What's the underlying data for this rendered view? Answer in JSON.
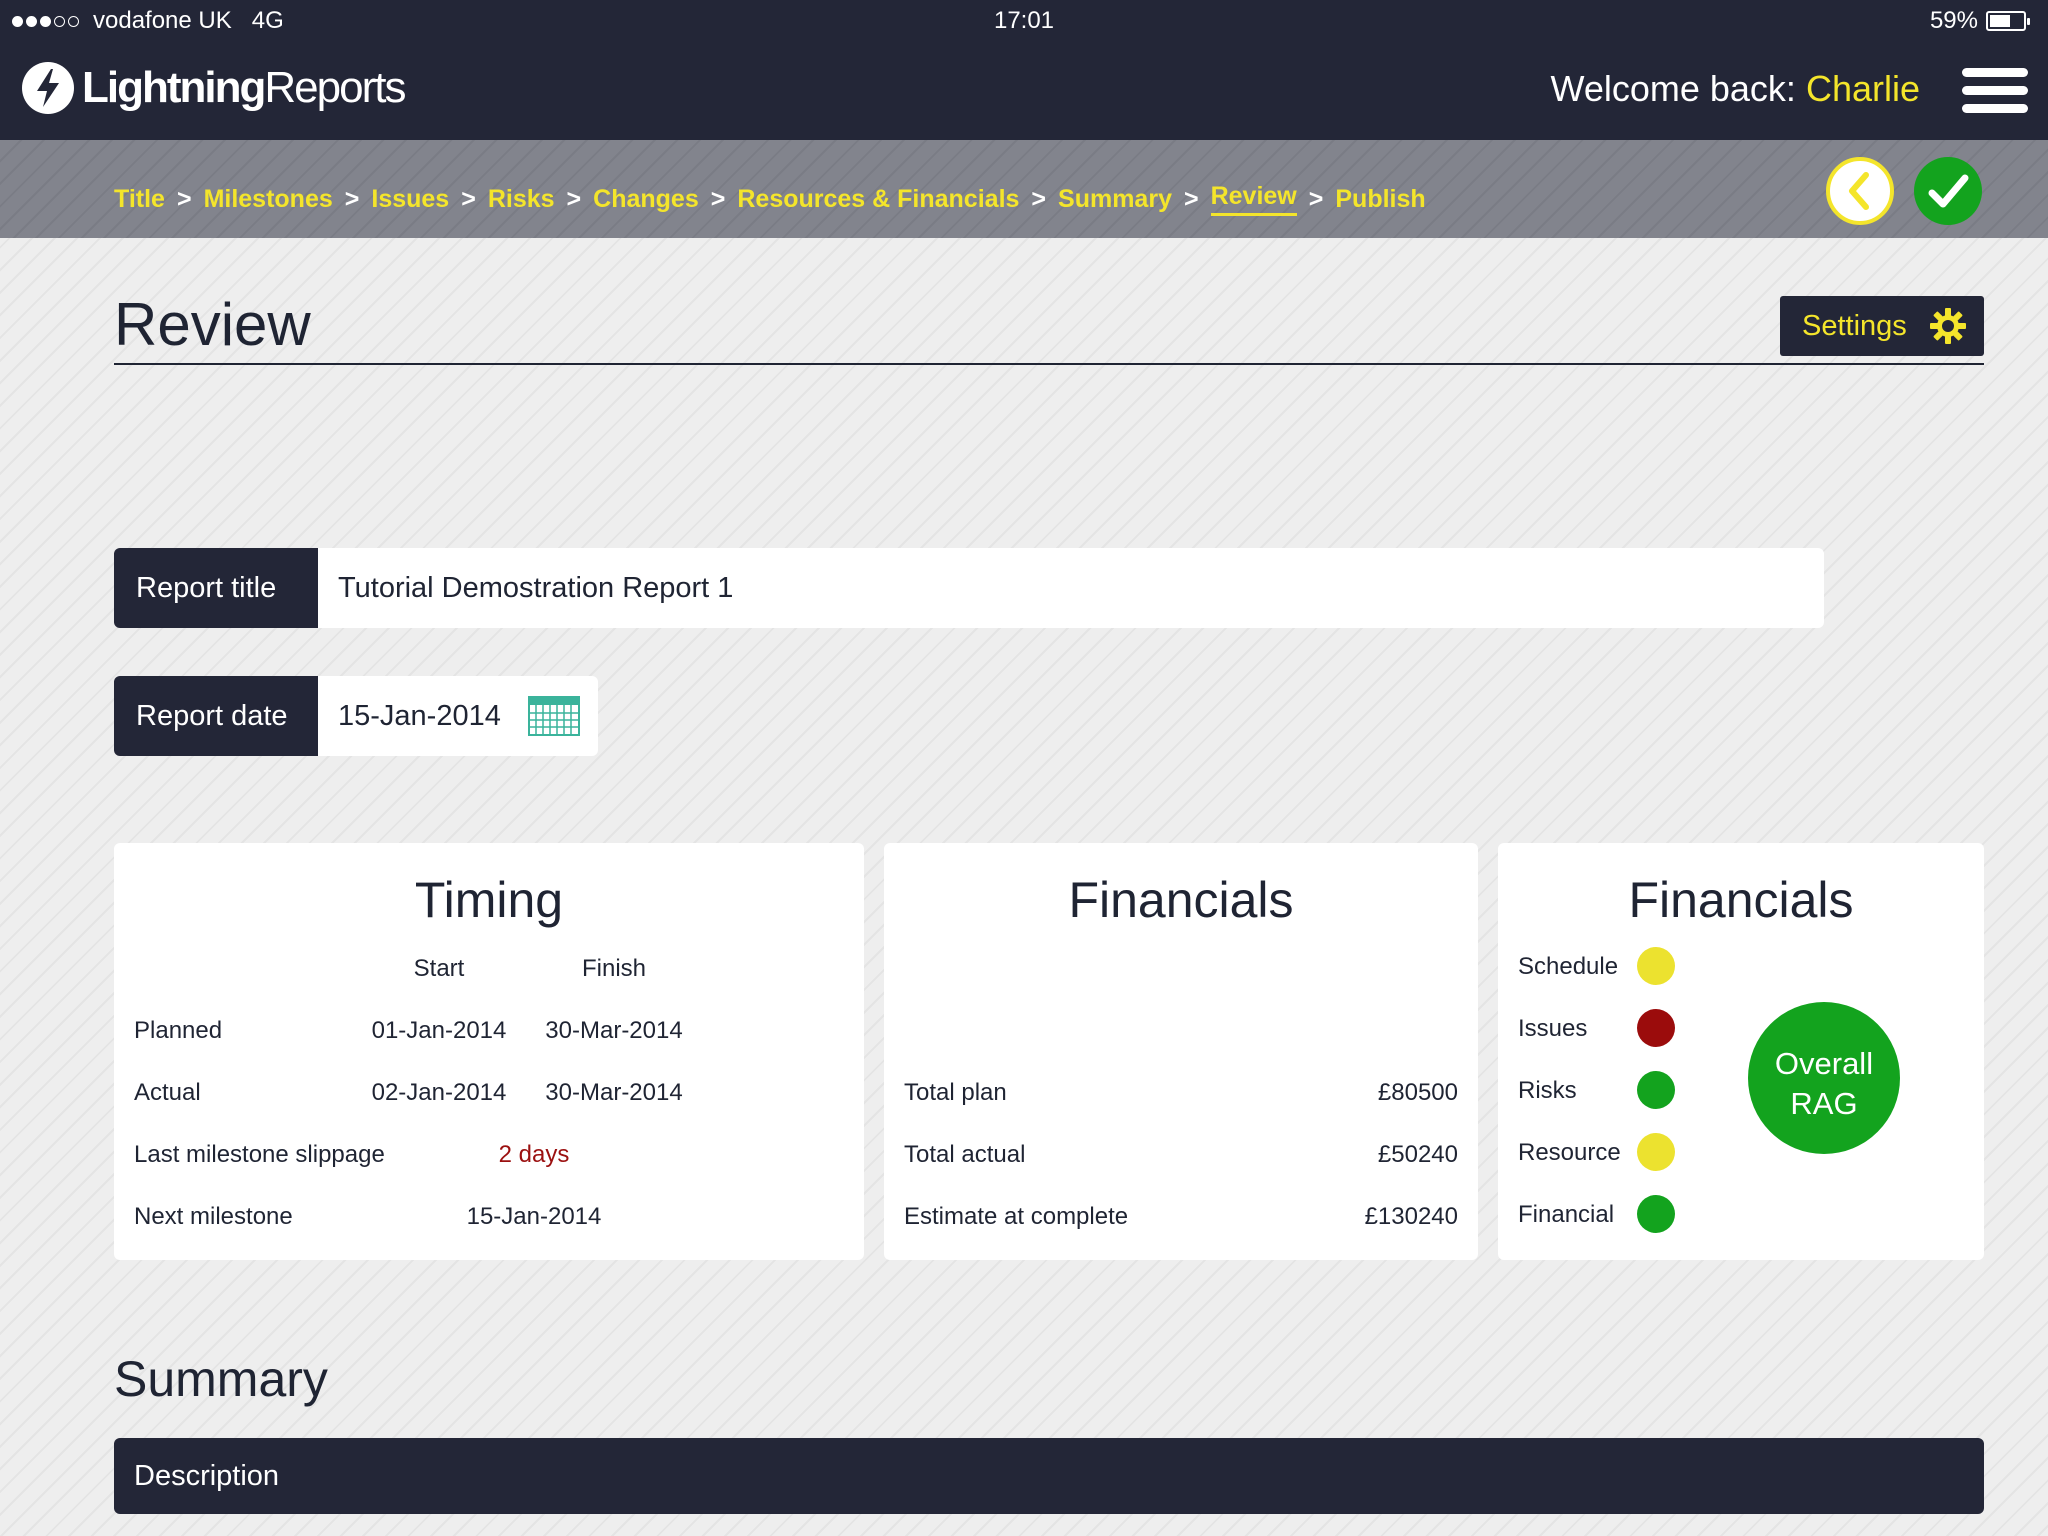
{
  "status_bar": {
    "carrier": "vodafone UK",
    "network": "4G",
    "time": "17:01",
    "battery": "59%"
  },
  "header": {
    "logo_bold": "Lightning",
    "logo_light": "Reports",
    "welcome_prefix": "Welcome back:",
    "user_name": "Charlie"
  },
  "breadcrumb": {
    "separator": ">",
    "items": [
      "Title",
      "Milestones",
      "Issues",
      "Risks",
      "Changes",
      "Resources & Financials",
      "Summary",
      "Review",
      "Publish"
    ],
    "active": "Review"
  },
  "page": {
    "title": "Review",
    "settings_label": "Settings"
  },
  "form": {
    "report_title_label": "Report title",
    "report_title_value": "Tutorial Demostration Report 1",
    "report_date_label": "Report date",
    "report_date_value": "15-Jan-2014"
  },
  "timing": {
    "heading": "Timing",
    "col_start": "Start",
    "col_finish": "Finish",
    "planned_label": "Planned",
    "planned_start": "01-Jan-2014",
    "planned_finish": "30-Mar-2014",
    "actual_label": "Actual",
    "actual_start": "02-Jan-2014",
    "actual_finish": "30-Mar-2014",
    "slippage_label": "Last milestone slippage",
    "slippage_value": "2 days",
    "next_label": "Next milestone",
    "next_value": "15-Jan-2014"
  },
  "financials": {
    "heading": "Financials",
    "total_plan_label": "Total plan",
    "total_plan_value": "£80500",
    "total_actual_label": "Total actual",
    "total_actual_value": "£50240",
    "eac_label": "Estimate at complete",
    "eac_value": "£130240"
  },
  "rag": {
    "heading": "Financials",
    "items": [
      {
        "label": "Schedule",
        "status": "amber",
        "color": "#ece22f"
      },
      {
        "label": "Issues",
        "status": "red",
        "color": "#9b0c0c"
      },
      {
        "label": "Risks",
        "status": "green",
        "color": "#13a31e"
      },
      {
        "label": "Resource",
        "status": "amber",
        "color": "#ece22f"
      },
      {
        "label": "Financial",
        "status": "green",
        "color": "#13a31e"
      }
    ],
    "overall_line1": "Overall",
    "overall_line2": "RAG",
    "overall_status": "green"
  },
  "summary": {
    "heading": "Summary",
    "description_label": "Description"
  },
  "colors": {
    "navy": "#232637",
    "accent_yellow": "#f4e52b",
    "green": "#13a31e",
    "red": "#9b0c0c"
  }
}
